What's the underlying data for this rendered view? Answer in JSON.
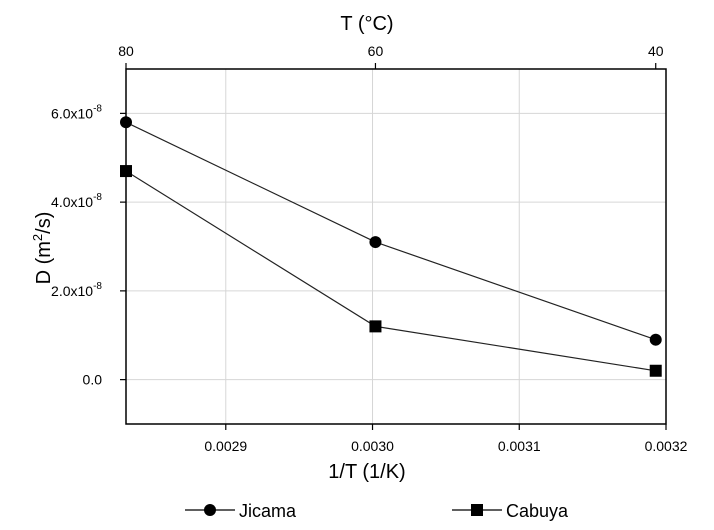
{
  "chart_data": {
    "type": "line",
    "xlabel": "1/T (1/K)",
    "ylabel_main": "D (m",
    "ylabel_sup": "2",
    "ylabel_tail": "/s)",
    "top_axis_label": "T (°C)",
    "xlim": [
      0.002832,
      0.0032
    ],
    "ylim": [
      -1e-08,
      7e-08
    ],
    "x_ticks": [
      {
        "value": 0.0029,
        "label": "0.0029"
      },
      {
        "value": 0.003,
        "label": "0.0030"
      },
      {
        "value": 0.0031,
        "label": "0.0031"
      },
      {
        "value": 0.0032,
        "label": "0.0032"
      }
    ],
    "y_ticks": [
      {
        "value": 0.0,
        "base": "0.0",
        "exp": ""
      },
      {
        "value": 2e-08,
        "base": "2.0x10",
        "exp": "-8"
      },
      {
        "value": 4e-08,
        "base": "4.0x10",
        "exp": "-8"
      },
      {
        "value": 6e-08,
        "base": "6.0x10",
        "exp": "-8"
      }
    ],
    "top_ticks": [
      {
        "value": 0.002832,
        "label": "80"
      },
      {
        "value": 0.003002,
        "label": "60"
      },
      {
        "value": 0.003193,
        "label": "40"
      }
    ],
    "grid": true,
    "legend_position": "bottom",
    "series": [
      {
        "name": "Jicama",
        "marker": "circle",
        "x": [
          0.002832,
          0.003002,
          0.003193
        ],
        "y": [
          5.8e-08,
          3.1e-08,
          9e-09
        ]
      },
      {
        "name": "Cabuya",
        "marker": "square",
        "x": [
          0.002832,
          0.003002,
          0.003193
        ],
        "y": [
          4.7e-08,
          1.2e-08,
          2e-09
        ]
      }
    ]
  }
}
